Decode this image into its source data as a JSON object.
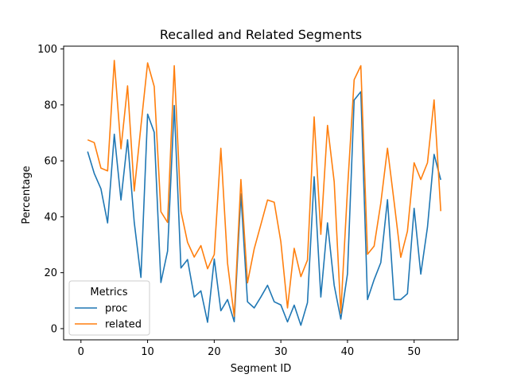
{
  "chart_data": {
    "type": "line",
    "title": "Recalled and Related Segments",
    "xlabel": "Segment ID",
    "ylabel": "Percentage",
    "xlim": [
      -2.6,
      56.6
    ],
    "ylim": [
      -4,
      101
    ],
    "xticks": [
      0,
      10,
      20,
      30,
      40,
      50
    ],
    "yticks": [
      0,
      20,
      40,
      60,
      80,
      100
    ],
    "grid": false,
    "legend": {
      "title": "Metrics",
      "placement": "lower-left"
    },
    "x": [
      1,
      2,
      3,
      4,
      5,
      6,
      7,
      8,
      9,
      10,
      11,
      12,
      13,
      14,
      15,
      16,
      17,
      18,
      19,
      20,
      21,
      22,
      23,
      24,
      25,
      26,
      27,
      28,
      29,
      30,
      31,
      32,
      33,
      34,
      35,
      36,
      37,
      38,
      39,
      40,
      41,
      42,
      43,
      44,
      45,
      46,
      47,
      48,
      49,
      50,
      51,
      52,
      53,
      54
    ],
    "series": [
      {
        "name": "proc",
        "color": "#1f77b4",
        "values": [
          63.3,
          55.5,
          50.0,
          37.8,
          69.5,
          46.0,
          67.5,
          38.0,
          18.3,
          76.7,
          70.2,
          16.5,
          27.7,
          79.8,
          21.7,
          24.7,
          11.3,
          13.5,
          2.3,
          24.9,
          6.4,
          10.4,
          2.5,
          48.2,
          9.6,
          7.4,
          11.3,
          15.5,
          9.6,
          8.5,
          2.4,
          8.4,
          1.2,
          9.3,
          54.3,
          11.3,
          37.8,
          15.5,
          3.4,
          19.6,
          81.7,
          84.7,
          10.4,
          17.5,
          23.6,
          46.1,
          10.4,
          10.4,
          12.5,
          43.0,
          19.5,
          36.3,
          62.3,
          53.2
        ]
      },
      {
        "name": "related",
        "color": "#ff7f0e",
        "values": [
          67.5,
          66.5,
          57.4,
          56.4,
          95.9,
          64.3,
          86.8,
          49.2,
          72.4,
          95.0,
          86.6,
          41.8,
          38.0,
          94.0,
          42.0,
          30.9,
          25.6,
          29.7,
          21.4,
          26.5,
          64.5,
          23.4,
          4.4,
          53.3,
          16.4,
          28.5,
          37.2,
          46.0,
          45.2,
          31.1,
          7.4,
          28.7,
          18.6,
          24.5,
          75.7,
          33.7,
          72.7,
          52.5,
          5.6,
          49.6,
          89.0,
          94.0,
          26.6,
          29.5,
          44.9,
          64.5,
          45.2,
          25.5,
          34.8,
          59.3,
          53.3,
          59.3,
          81.8,
          42.0
        ]
      }
    ]
  }
}
